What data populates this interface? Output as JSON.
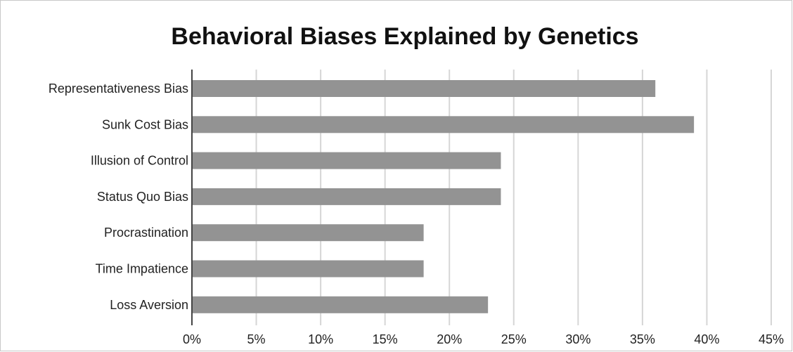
{
  "chart_data": {
    "type": "bar",
    "orientation": "horizontal",
    "title": "Behavioral Biases Explained by Genetics",
    "xlabel": "",
    "ylabel": "",
    "categories": [
      "Representativeness Bias",
      "Sunk Cost Bias",
      "Illusion of Control",
      "Status Quo Bias",
      "Procrastination",
      "Time Impatience",
      "Loss Aversion"
    ],
    "values": [
      36,
      39,
      24,
      24,
      18,
      18,
      23
    ],
    "xlim": [
      0,
      45
    ],
    "xticks": [
      0,
      5,
      10,
      15,
      20,
      25,
      30,
      35,
      40,
      45
    ],
    "xtick_labels": [
      "0%",
      "5%",
      "10%",
      "15%",
      "20%",
      "25%",
      "30%",
      "35%",
      "40%",
      "45%"
    ],
    "grid": "vertical",
    "legend": "none",
    "colors": {
      "bar": "#939393",
      "grid": "#d6d6d6",
      "axis": "#444444",
      "text": "#222222"
    }
  }
}
